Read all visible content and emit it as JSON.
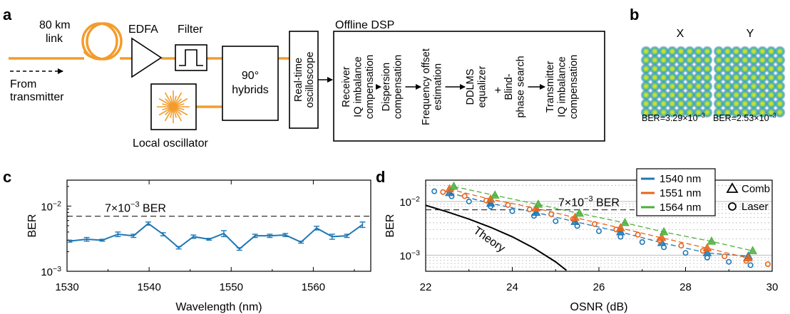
{
  "panel_letters": {
    "a": "a",
    "b": "b",
    "c": "c",
    "d": "d"
  },
  "setup": {
    "link_line1": "80 km",
    "link_line2": "link",
    "edfa": "EDFA",
    "filter": "Filter",
    "from_line1": "From",
    "from_line2": "transmitter",
    "hybrid_line1": "90°",
    "hybrid_line2": "hybrids",
    "scope_line1": "Real-time",
    "scope_line2": "oscilloscope",
    "local_osc": "Local oscillator",
    "dsp_title": "Offline DSP",
    "dsp_steps": [
      [
        "Receiver",
        "IQ imbalance",
        "compensation"
      ],
      [
        "Dispersion",
        "compensation"
      ],
      [
        "Frequency offset",
        "estimation"
      ],
      [
        "DDLMS",
        "equalizer"
      ],
      [
        "Blind-",
        "phase search"
      ],
      [
        "Transmitter",
        "IQ imbalance",
        "compensation"
      ]
    ],
    "dsp_plus": "+"
  },
  "constellation": {
    "x_label": "X",
    "y_label": "Y",
    "x_ber": "BER=3.29×10",
    "x_ber_exp": "−3",
    "y_ber": "BER=2.53×10",
    "y_ber_exp": "−3",
    "grid_size": 8
  },
  "colors": {
    "fiber": "#f39c2c",
    "blue": "#1f77b4",
    "orange": "#e8641a",
    "green": "#4caf3c"
  },
  "chart_data": [
    {
      "type": "line",
      "panel": "c",
      "xlabel": "Wavelength (nm)",
      "ylabel": "BER",
      "xlim": [
        1530,
        1567
      ],
      "ylim": [
        0.001,
        0.025
      ],
      "yscale": "log",
      "xticks": [
        "1530",
        "1540",
        "1550",
        "1560"
      ],
      "yticks": [
        {
          "base": "10",
          "exp": "−2",
          "value": 0.01
        },
        {
          "base": "10",
          "exp": "−3",
          "value": 0.001
        }
      ],
      "threshold": {
        "value": 0.007,
        "label": "7×10",
        "label_exp": "−3",
        "label_suffix": " BER"
      },
      "x": [
        1530.3,
        1532.4,
        1534.3,
        1536.2,
        1538.1,
        1539.9,
        1541.7,
        1543.6,
        1545.4,
        1547.3,
        1549.1,
        1551.0,
        1552.9,
        1554.7,
        1556.6,
        1558.5,
        1560.4,
        1562.3,
        1564.1,
        1566.0
      ],
      "y": [
        0.0029,
        0.0031,
        0.003,
        0.0037,
        0.0035,
        0.0054,
        0.0037,
        0.0023,
        0.0034,
        0.0031,
        0.0038,
        0.0022,
        0.0035,
        0.0035,
        0.0036,
        0.0028,
        0.0046,
        0.0034,
        0.0035,
        0.0052
      ],
      "err": [
        0.0001,
        0.0002,
        0.0001,
        0.0003,
        0.0002,
        0.0003,
        0.0002,
        0.0001,
        0.0002,
        0.0001,
        0.0004,
        0.0001,
        0.0002,
        0.0002,
        0.0002,
        0.0001,
        0.0003,
        0.0003,
        0.0002,
        0.0005
      ],
      "color": "#1f77b4"
    },
    {
      "type": "scatter",
      "panel": "d",
      "xlabel": "OSNR (dB)",
      "ylabel": "BER",
      "xlim": [
        22,
        30
      ],
      "ylim": [
        0.0005,
        0.025
      ],
      "yscale": "log",
      "xticks": [
        "22",
        "24",
        "26",
        "28",
        "30"
      ],
      "yticks": [
        {
          "base": "10",
          "exp": "−2",
          "value": 0.01
        },
        {
          "base": "10",
          "exp": "−3",
          "value": 0.001
        }
      ],
      "threshold": {
        "value": 0.007,
        "label": "7×10",
        "label_exp": "−3",
        "label_suffix": " BER"
      },
      "theory": {
        "label": "Theory",
        "x": [
          22.0,
          22.5,
          23.0,
          23.5,
          24.0,
          24.5,
          25.0,
          25.25
        ],
        "y": [
          0.0085,
          0.0064,
          0.0047,
          0.0033,
          0.0022,
          0.00135,
          0.00075,
          0.00052
        ]
      },
      "legend": {
        "position": "top-right",
        "series_labels": [
          "1540 nm",
          "1551 nm",
          "1564 nm"
        ],
        "marker_labels": [
          "Comb",
          "Laser"
        ]
      },
      "series": [
        {
          "name": "1540 nm",
          "color": "#1f77b4",
          "comb_x": [
            22.55,
            23.5,
            24.55,
            25.45,
            26.5,
            27.45,
            28.5,
            29.45
          ],
          "comb_y": [
            0.0145,
            0.0092,
            0.0062,
            0.0042,
            0.0027,
            0.0017,
            0.0011,
            0.00095
          ],
          "laser_x": [
            22.2,
            22.6,
            23.0,
            23.5,
            24.0,
            24.5,
            25.0,
            25.5,
            26.0,
            26.5,
            27.0,
            27.5,
            28.0,
            28.5,
            29.0,
            29.5
          ],
          "laser_y": [
            0.0155,
            0.0125,
            0.01,
            0.0081,
            0.0066,
            0.0054,
            0.0043,
            0.0035,
            0.0028,
            0.0022,
            0.00175,
            0.0014,
            0.0011,
            0.0009,
            0.00075,
            0.00065
          ]
        },
        {
          "name": "1551 nm",
          "color": "#e8641a",
          "comb_x": [
            22.55,
            23.5,
            24.55,
            25.45,
            26.5,
            27.45,
            28.5,
            29.45
          ],
          "comb_y": [
            0.017,
            0.011,
            0.0075,
            0.005,
            0.0032,
            0.0021,
            0.00135,
            0.00088
          ],
          "laser_x": [
            22.4,
            22.9,
            23.4,
            23.9,
            24.4,
            24.9,
            25.4,
            25.9,
            26.4,
            26.9,
            27.4,
            27.9,
            28.4,
            28.9,
            29.4,
            29.9
          ],
          "laser_y": [
            0.015,
            0.0126,
            0.0104,
            0.0086,
            0.0071,
            0.0058,
            0.0047,
            0.0038,
            0.003,
            0.0024,
            0.0019,
            0.0015,
            0.0012,
            0.00095,
            0.00078,
            0.00068
          ]
        },
        {
          "name": "1564 nm",
          "color": "#4caf3c",
          "comb_x": [
            22.65,
            23.6,
            24.6,
            25.55,
            26.6,
            27.5,
            28.6,
            29.55
          ],
          "comb_y": [
            0.019,
            0.013,
            0.0088,
            0.006,
            0.004,
            0.0027,
            0.0018,
            0.0012
          ],
          "laser_x": [],
          "laser_y": []
        }
      ]
    }
  ]
}
